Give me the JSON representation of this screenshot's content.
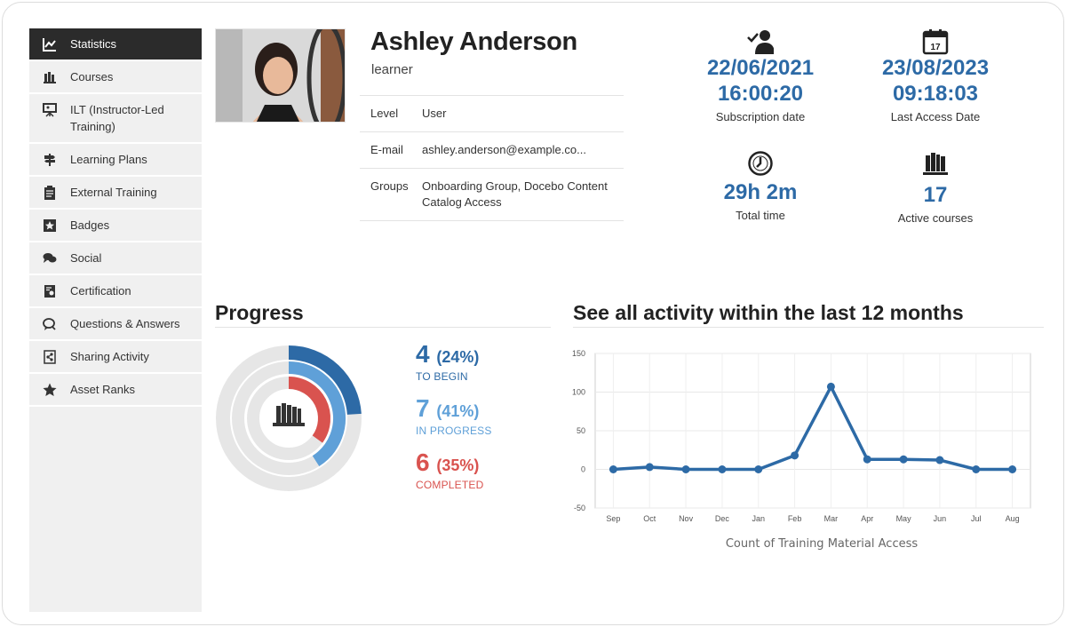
{
  "sidebar": {
    "items": [
      {
        "label": "Statistics",
        "icon": "chart-icon",
        "active": true
      },
      {
        "label": "Courses",
        "icon": "books-icon"
      },
      {
        "label": "ILT (Instructor-Led Training)",
        "icon": "presentation-icon"
      },
      {
        "label": "Learning Plans",
        "icon": "signpost-icon"
      },
      {
        "label": "External Training",
        "icon": "clipboard-icon"
      },
      {
        "label": "Badges",
        "icon": "badge-star-icon"
      },
      {
        "label": "Social",
        "icon": "chat-bubbles-icon"
      },
      {
        "label": "Certification",
        "icon": "certificate-icon"
      },
      {
        "label": "Questions & Answers",
        "icon": "questions-icon"
      },
      {
        "label": "Sharing Activity",
        "icon": "share-icon"
      },
      {
        "label": "Asset Ranks",
        "icon": "star-icon"
      }
    ]
  },
  "profile": {
    "name": "Ashley Anderson",
    "role": "learner",
    "fields": [
      {
        "key": "Level",
        "value": "User"
      },
      {
        "key": "E-mail",
        "value": "ashley.anderson@example.co..."
      },
      {
        "key": "Groups",
        "value": "Onboarding Group, Docebo Content Catalog Access"
      }
    ]
  },
  "stats": {
    "subscription": {
      "date": "22/06/2021",
      "time": "16:00:20",
      "label": "Subscription date",
      "icon": "user-check-icon"
    },
    "last_access": {
      "date": "23/08/2023",
      "time": "09:18:03",
      "label": "Last Access Date",
      "icon": "calendar-icon",
      "calendar_day": "17"
    },
    "total_time": {
      "value": "29h 2m",
      "label": "Total time",
      "icon": "clock-icon"
    },
    "active_courses": {
      "value": "17",
      "label": "Active courses",
      "icon": "books-icon"
    }
  },
  "progress": {
    "title": "Progress",
    "items": [
      {
        "count": "4",
        "pct": "(24%)",
        "caption": "TO BEGIN",
        "fraction": 0.24,
        "color": "#2d6aa6"
      },
      {
        "count": "7",
        "pct": "(41%)",
        "caption": "IN PROGRESS",
        "fraction": 0.41,
        "color": "#5fa0d8"
      },
      {
        "count": "6",
        "pct": "(35%)",
        "caption": "COMPLETED",
        "fraction": 0.35,
        "color": "#d9534f"
      }
    ],
    "center_icon": "books-icon"
  },
  "activity": {
    "title": "See all activity within the last 12 months"
  },
  "chart_data": {
    "type": "line",
    "categories": [
      "Sep",
      "Oct",
      "Nov",
      "Dec",
      "Jan",
      "Feb",
      "Mar",
      "Apr",
      "May",
      "Jun",
      "Jul",
      "Aug"
    ],
    "values": [
      0,
      3,
      0,
      0,
      0,
      18,
      107,
      13,
      13,
      12,
      0,
      0
    ],
    "ylim": [
      -50,
      150
    ],
    "yticks": [
      "150",
      "100",
      "50",
      "0",
      "-50"
    ],
    "xlabel": "Count of Training Material Access",
    "grid": true,
    "color": "#2d6aa6"
  }
}
